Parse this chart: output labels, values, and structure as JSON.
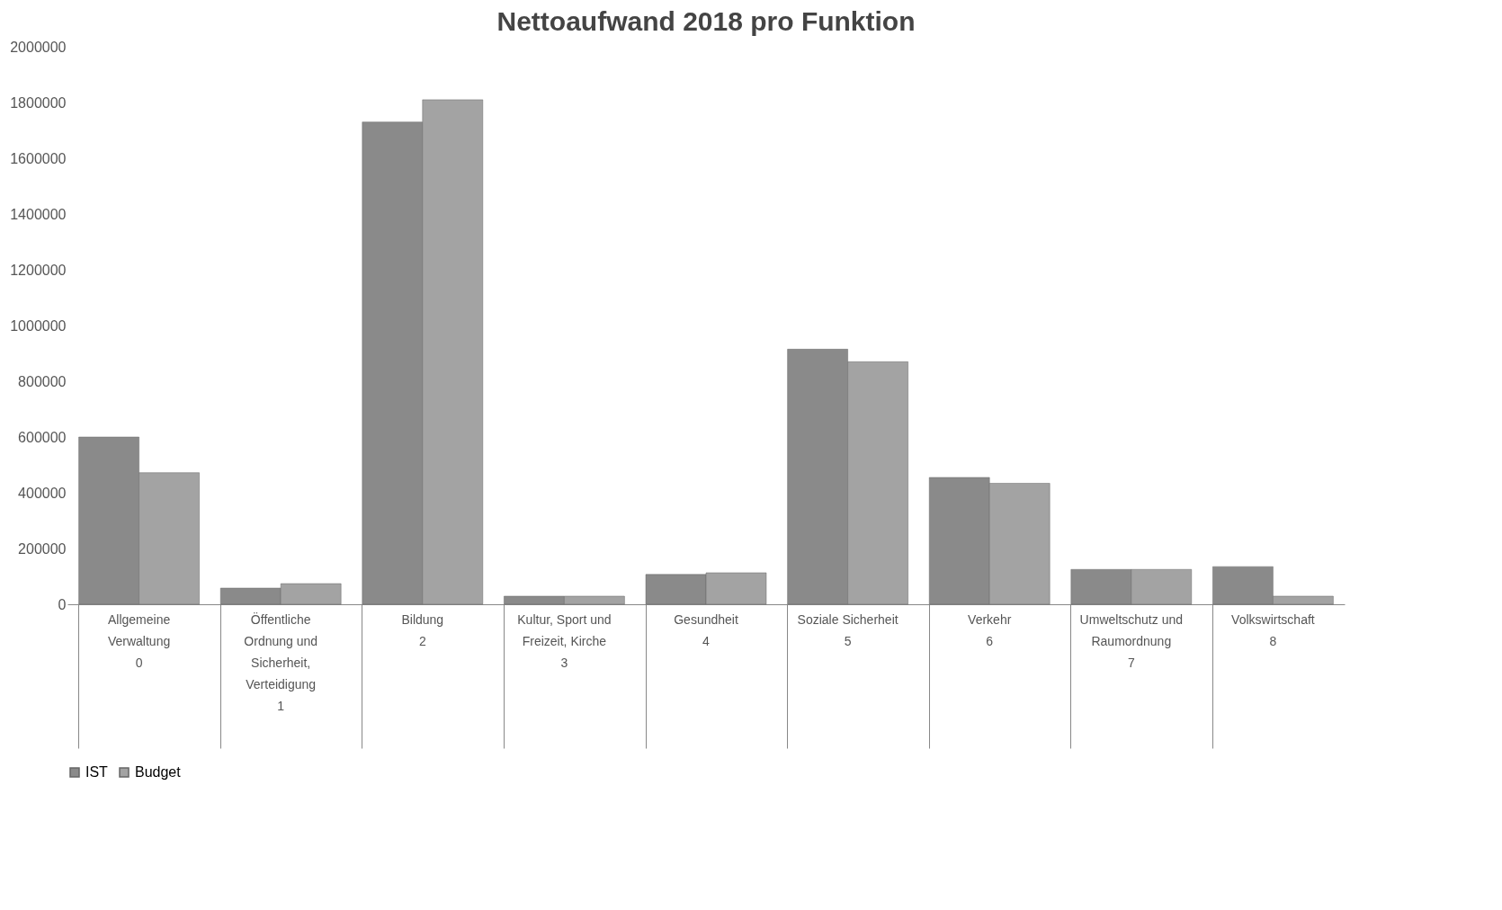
{
  "chart_data": {
    "type": "bar",
    "title": "Nettoaufwand 2018 pro Funktion",
    "categories": [
      "Allgemeine\nVerwaltung\n0",
      "Öffentliche\nOrdnung und\nSicherheit,\nVerteidigung\n1",
      "Bildung\n2",
      "Kultur, Sport und\nFreizeit, Kirche\n3",
      "Gesundheit\n4",
      "Soziale Sicherheit\n5",
      "Verkehr\n6",
      "Umweltschutz und\nRaumordnung\n7",
      "Volkswirtschaft\n8"
    ],
    "series": [
      {
        "name": "IST",
        "color": "#8a8a8a",
        "values": [
          600000,
          58000,
          1730000,
          29000,
          107000,
          915000,
          455000,
          125000,
          135000
        ]
      },
      {
        "name": "Budget",
        "color": "#a3a3a3",
        "values": [
          472000,
          74000,
          1810000,
          29000,
          113000,
          870000,
          434000,
          125000,
          29000
        ]
      }
    ],
    "ylim": [
      0,
      2000000
    ],
    "yticks": [
      0,
      200000,
      400000,
      600000,
      800000,
      1000000,
      1200000,
      1400000,
      1600000,
      1800000,
      2000000
    ],
    "grid": false,
    "legend": "bottom"
  }
}
